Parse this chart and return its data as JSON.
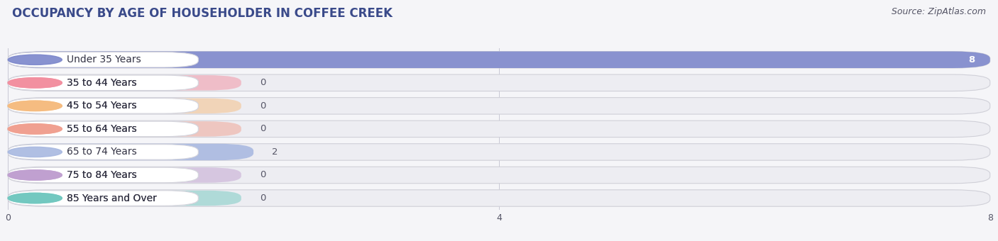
{
  "title": "OCCUPANCY BY AGE OF HOUSEHOLDER IN COFFEE CREEK",
  "source": "Source: ZipAtlas.com",
  "categories": [
    "Under 35 Years",
    "35 to 44 Years",
    "45 to 54 Years",
    "55 to 64 Years",
    "65 to 74 Years",
    "75 to 84 Years",
    "85 Years and Over"
  ],
  "values": [
    8,
    0,
    0,
    0,
    2,
    0,
    0
  ],
  "bar_colors": [
    "#7b86cb",
    "#f28fa0",
    "#f5bc80",
    "#f0a090",
    "#a8b8e0",
    "#c0a0d0",
    "#72c8c0"
  ],
  "xlim_max": 8,
  "xticks": [
    0,
    4,
    8
  ],
  "background_color": "#f5f5f8",
  "bar_bg_color": "#e8e8ee",
  "row_bg_color": "#ededf2",
  "title_fontsize": 12,
  "label_fontsize": 10,
  "value_fontsize": 9.5,
  "source_fontsize": 9
}
